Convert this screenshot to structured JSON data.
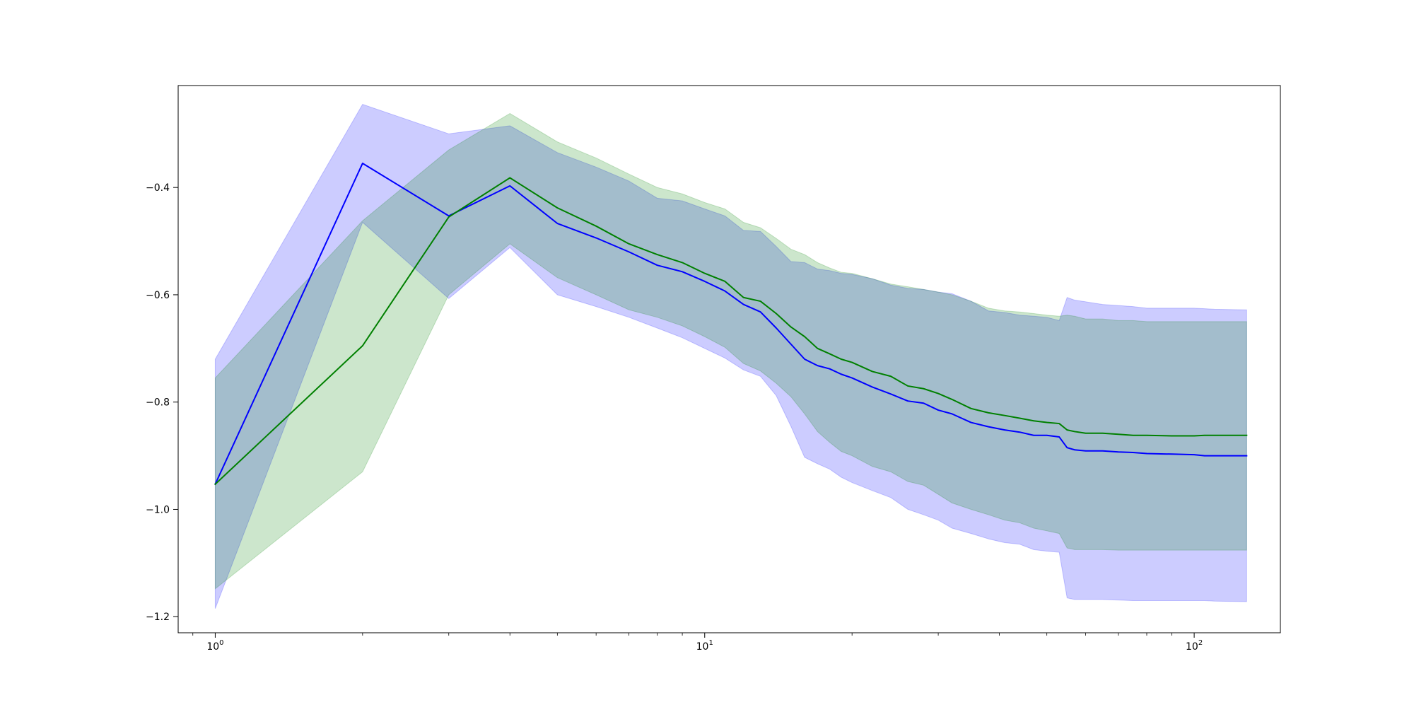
{
  "chart_data": {
    "type": "line",
    "title": "",
    "xlabel": "",
    "ylabel": "",
    "xscale": "log",
    "xlim": [
      0.84,
      150
    ],
    "ylim": [
      -1.23,
      -0.21
    ],
    "grid": false,
    "x_ticks": [
      {
        "value": 1,
        "base": "10",
        "exp": "0"
      },
      {
        "value": 10,
        "base": "10",
        "exp": "1"
      },
      {
        "value": 100,
        "base": "10",
        "exp": "2"
      }
    ],
    "y_ticks": [
      {
        "value": -0.4,
        "label": "−0.4"
      },
      {
        "value": -0.6,
        "label": "−0.6"
      },
      {
        "value": -0.8,
        "label": "−0.8"
      },
      {
        "value": -1.0,
        "label": "−1.0"
      },
      {
        "value": -1.2,
        "label": "−1.2"
      }
    ],
    "series": [
      {
        "color": "#0000ff",
        "band_color": "#0000ff",
        "band_alpha": 0.2,
        "x": [
          1,
          2,
          3,
          4,
          5,
          6,
          7,
          8,
          9,
          10,
          11,
          12,
          13,
          14,
          15,
          16,
          17,
          18,
          19,
          20,
          22,
          24,
          26,
          28,
          30,
          32,
          35,
          38,
          41,
          44,
          47,
          50,
          53,
          55,
          57,
          60,
          65,
          70,
          75,
          80,
          90,
          100,
          105,
          110,
          128
        ],
        "y": [
          -0.953,
          -0.355,
          -0.453,
          -0.397,
          -0.467,
          -0.494,
          -0.52,
          -0.545,
          -0.557,
          -0.575,
          -0.593,
          -0.618,
          -0.632,
          -0.662,
          -0.692,
          -0.72,
          -0.732,
          -0.738,
          -0.748,
          -0.755,
          -0.772,
          -0.785,
          -0.798,
          -0.802,
          -0.815,
          -0.822,
          -0.838,
          -0.846,
          -0.852,
          -0.856,
          -0.862,
          -0.862,
          -0.865,
          -0.885,
          -0.889,
          -0.891,
          -0.891,
          -0.893,
          -0.894,
          -0.896,
          -0.897,
          -0.898,
          -0.9,
          -0.9,
          -0.9
        ],
        "upper": [
          -0.72,
          -0.245,
          -0.3,
          -0.285,
          -0.335,
          -0.362,
          -0.388,
          -0.42,
          -0.425,
          -0.44,
          -0.453,
          -0.48,
          -0.482,
          -0.51,
          -0.538,
          -0.54,
          -0.552,
          -0.555,
          -0.56,
          -0.562,
          -0.57,
          -0.582,
          -0.588,
          -0.59,
          -0.595,
          -0.598,
          -0.612,
          -0.63,
          -0.633,
          -0.638,
          -0.64,
          -0.642,
          -0.648,
          -0.605,
          -0.61,
          -0.613,
          -0.618,
          -0.62,
          -0.622,
          -0.625,
          -0.625,
          -0.625,
          -0.626,
          -0.627,
          -0.628
        ],
        "lower": [
          -1.185,
          -0.465,
          -0.607,
          -0.512,
          -0.6,
          -0.622,
          -0.642,
          -0.662,
          -0.68,
          -0.7,
          -0.718,
          -0.74,
          -0.752,
          -0.788,
          -0.845,
          -0.903,
          -0.915,
          -0.925,
          -0.94,
          -0.95,
          -0.965,
          -0.978,
          -1.0,
          -1.01,
          -1.02,
          -1.035,
          -1.045,
          -1.055,
          -1.062,
          -1.065,
          -1.075,
          -1.078,
          -1.08,
          -1.165,
          -1.168,
          -1.168,
          -1.168,
          -1.169,
          -1.17,
          -1.17,
          -1.17,
          -1.17,
          -1.17,
          -1.171,
          -1.172
        ]
      },
      {
        "color": "#008000",
        "band_color": "#008000",
        "band_alpha": 0.2,
        "x": [
          1,
          2,
          3,
          4,
          5,
          6,
          7,
          8,
          9,
          10,
          11,
          12,
          13,
          14,
          15,
          16,
          17,
          18,
          19,
          20,
          22,
          24,
          26,
          28,
          30,
          32,
          35,
          38,
          41,
          44,
          47,
          50,
          53,
          55,
          57,
          60,
          65,
          70,
          75,
          80,
          90,
          100,
          105,
          110,
          128
        ],
        "y": [
          -0.953,
          -0.695,
          -0.455,
          -0.382,
          -0.438,
          -0.472,
          -0.505,
          -0.525,
          -0.54,
          -0.56,
          -0.575,
          -0.605,
          -0.612,
          -0.635,
          -0.66,
          -0.678,
          -0.7,
          -0.71,
          -0.72,
          -0.726,
          -0.743,
          -0.752,
          -0.77,
          -0.775,
          -0.784,
          -0.795,
          -0.812,
          -0.82,
          -0.825,
          -0.83,
          -0.835,
          -0.838,
          -0.84,
          -0.852,
          -0.855,
          -0.858,
          -0.858,
          -0.86,
          -0.862,
          -0.862,
          -0.863,
          -0.863,
          -0.862,
          -0.862,
          -0.862
        ],
        "upper": [
          -0.755,
          -0.462,
          -0.33,
          -0.262,
          -0.315,
          -0.345,
          -0.375,
          -0.4,
          -0.412,
          -0.428,
          -0.44,
          -0.465,
          -0.475,
          -0.495,
          -0.515,
          -0.525,
          -0.54,
          -0.55,
          -0.558,
          -0.56,
          -0.57,
          -0.58,
          -0.585,
          -0.59,
          -0.595,
          -0.6,
          -0.612,
          -0.625,
          -0.63,
          -0.632,
          -0.635,
          -0.638,
          -0.64,
          -0.638,
          -0.64,
          -0.645,
          -0.645,
          -0.648,
          -0.648,
          -0.65,
          -0.65,
          -0.65,
          -0.65,
          -0.65,
          -0.65
        ],
        "lower": [
          -1.148,
          -0.93,
          -0.6,
          -0.505,
          -0.568,
          -0.6,
          -0.628,
          -0.642,
          -0.658,
          -0.678,
          -0.698,
          -0.728,
          -0.742,
          -0.765,
          -0.79,
          -0.822,
          -0.855,
          -0.875,
          -0.892,
          -0.9,
          -0.92,
          -0.93,
          -0.948,
          -0.955,
          -0.972,
          -0.988,
          -1.0,
          -1.01,
          -1.02,
          -1.025,
          -1.035,
          -1.04,
          -1.045,
          -1.072,
          -1.075,
          -1.075,
          -1.075,
          -1.076,
          -1.076,
          -1.076,
          -1.076,
          -1.076,
          -1.076,
          -1.076,
          -1.076
        ]
      }
    ]
  }
}
